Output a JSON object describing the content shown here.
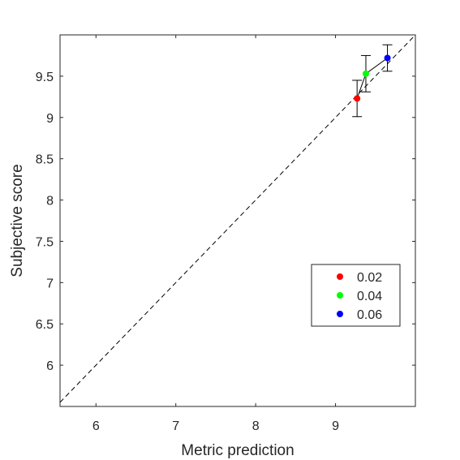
{
  "chart_data": {
    "type": "scatter",
    "xlabel": "Metric prediction",
    "ylabel": "Subjective score",
    "xlim": [
      5.55,
      10.0
    ],
    "ylim": [
      5.5,
      10.0
    ],
    "xticks": [
      6,
      7,
      8,
      9
    ],
    "yticks": [
      6,
      6.5,
      7,
      7.5,
      8,
      8.5,
      9,
      9.5
    ],
    "xtick_labels": [
      "6",
      "7",
      "8",
      "9"
    ],
    "ytick_labels": [
      "6",
      "6.5",
      "7",
      "7.5",
      "8",
      "8.5",
      "9",
      "9.5"
    ],
    "grid": false,
    "legend_position": "lower-right",
    "reference_line": "y = x (dashed)",
    "series": [
      {
        "name": "0.02",
        "color": "#ff0000",
        "x": 9.27,
        "y": 9.23,
        "yerr": 0.22
      },
      {
        "name": "0.04",
        "color": "#00ff00",
        "x": 9.38,
        "y": 9.53,
        "yerr": 0.22
      },
      {
        "name": "0.06",
        "color": "#0000ff",
        "x": 9.65,
        "y": 9.72,
        "yerr": 0.16
      }
    ]
  }
}
